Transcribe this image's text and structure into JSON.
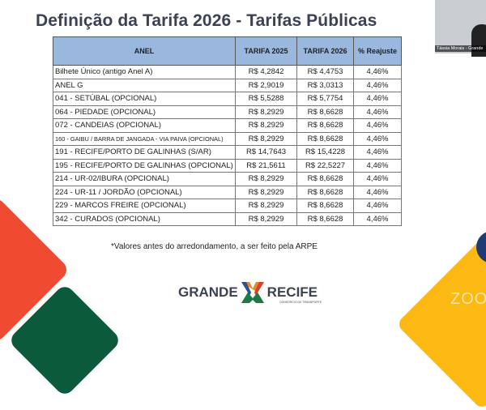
{
  "slide": {
    "title": "Definição da Tarifa 2026 - Tarifas Públicas",
    "table": {
      "headers": [
        "ANEL",
        "TARIFA 2025",
        "TARIFA 2026",
        "% Reajuste"
      ],
      "rows": [
        [
          "Bilhete Único (antigo Anel A)",
          "R$ 4,2842",
          "R$ 4,4753",
          "4,46%"
        ],
        [
          "ANEL G",
          "R$ 2,9019",
          "R$ 3,0313",
          "4,46%"
        ],
        [
          "041 - SETÚBAL (OPCIONAL)",
          "R$ 5,5288",
          "R$ 5,7754",
          "4,46%"
        ],
        [
          "064 - PIEDADE (OPCIONAL)",
          "R$ 8,2929",
          "R$ 8,6628",
          "4,46%"
        ],
        [
          "072 - CANDEIAS (OPCIONAL)",
          "R$ 8,2929",
          "R$ 8,6628",
          "4,46%"
        ],
        [
          "160 - GAIBU / BARRA DE JANGADA - VIA PAIVA (OPCIONAL)",
          "R$ 8,2929",
          "R$ 8,6628",
          "4,46%"
        ],
        [
          "191 - RECIFE/PORTO DE GALINHAS (S/AR)",
          "R$ 14,7643",
          "R$ 15,4228",
          "4,46%"
        ],
        [
          "195 - RECIFE/PORTO DE GALINHAS (OPCIONAL)",
          "R$ 21,5611",
          "R$ 22,5227",
          "4,46%"
        ],
        [
          "214 - UR-02/IBURA (OPCIONAL)",
          "R$ 8,2929",
          "R$ 8,6628",
          "4,46%"
        ],
        [
          "224 - UR-11 / JORDÃO (OPCIONAL)",
          "R$ 8,2929",
          "R$ 8,6628",
          "4,46%"
        ],
        [
          "229 - MARCOS FREIRE (OPCIONAL)",
          "R$ 8,2929",
          "R$ 8,6628",
          "4,46%"
        ],
        [
          "342 - CURADOS (OPCIONAL)",
          "R$ 8,2929",
          "R$ 8,6628",
          "4,46%"
        ]
      ]
    },
    "note": "*Valores antes do arredondamento, a ser feito pela ARPE",
    "logo": {
      "left": "GRANDE",
      "right": "RECIFE",
      "sub": "CONSÓRCIO DE TRANSPORTE"
    }
  },
  "video": {
    "participant_name": "Tássia Morais - Grande",
    "watermark": "ZOO"
  },
  "colors": {
    "header": "#9ab7dd",
    "title": "#3b4256",
    "red": "#f04a31",
    "green": "#0b5a3c",
    "yellow": "#fdb913"
  }
}
